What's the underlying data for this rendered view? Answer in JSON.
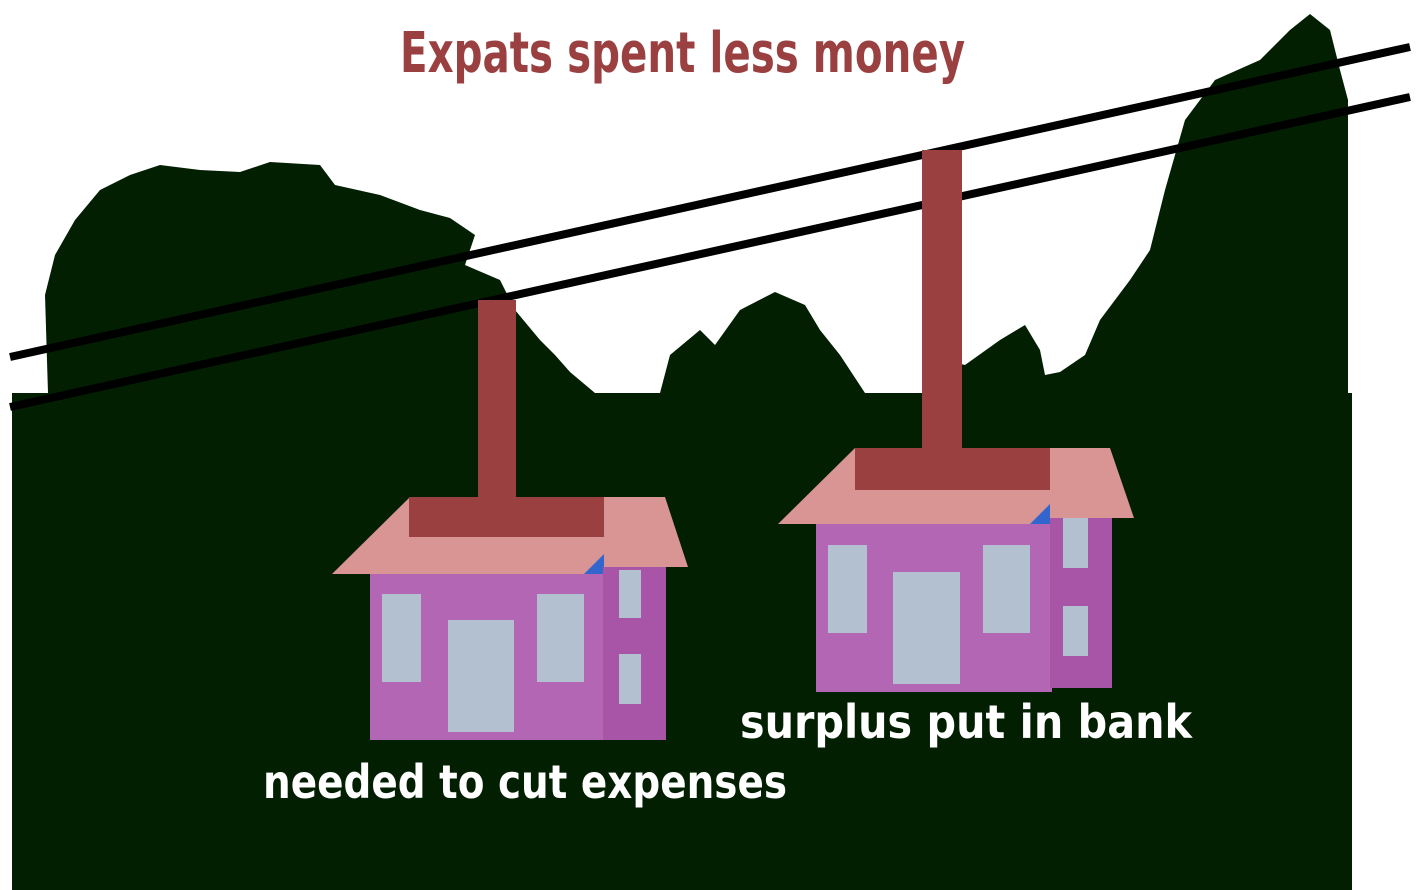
{
  "title": "Expats spent less money",
  "cabins": [
    {
      "label": "needed to cut expenses"
    },
    {
      "label": "surplus put in bank"
    }
  ]
}
